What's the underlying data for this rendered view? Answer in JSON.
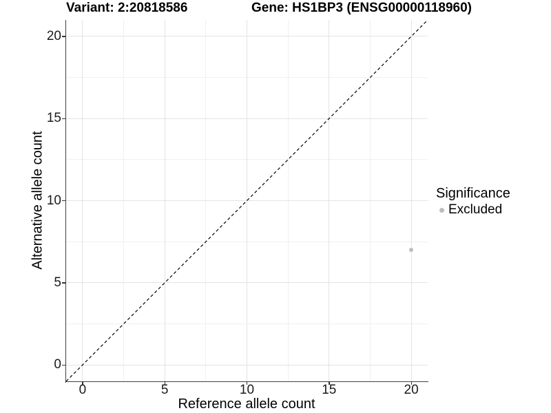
{
  "chart_data": {
    "type": "scatter",
    "titles": {
      "left": "Variant: 2:20818586",
      "right": "Gene: HS1BP3 (ENSG00000118960)"
    },
    "xlabel": "Reference allele count",
    "ylabel": "Alternative allele count",
    "xlim": [
      -1,
      21
    ],
    "ylim": [
      -1,
      21
    ],
    "x_ticks": [
      0,
      5,
      10,
      15,
      20
    ],
    "y_ticks": [
      0,
      5,
      10,
      15,
      20
    ],
    "x_minor_ticks": [
      2.5,
      7.5,
      12.5,
      17.5
    ],
    "y_minor_ticks": [
      2.5,
      7.5,
      12.5,
      17.5
    ],
    "grid": "major+minor",
    "identity_line": {
      "style": "dashed",
      "color": "#000000",
      "from": [
        -1,
        -1
      ],
      "to": [
        21,
        21
      ]
    },
    "series": [
      {
        "name": "Excluded",
        "color": "#bdbdbd",
        "marker": "circle",
        "points": [
          [
            20,
            7
          ]
        ]
      }
    ],
    "legend": {
      "title": "Significance",
      "position": "right",
      "entries": [
        {
          "label": "Excluded",
          "color": "#bdbdbd",
          "marker": "circle"
        }
      ]
    }
  },
  "colors": {
    "background": "#ffffff",
    "axis_line": "#3f3f3f",
    "tick_mark": "#333333",
    "grid_major": "#e3e3e3",
    "grid_minor": "#f0f0f0",
    "text": "#000000",
    "point": "#bdbdbd"
  }
}
